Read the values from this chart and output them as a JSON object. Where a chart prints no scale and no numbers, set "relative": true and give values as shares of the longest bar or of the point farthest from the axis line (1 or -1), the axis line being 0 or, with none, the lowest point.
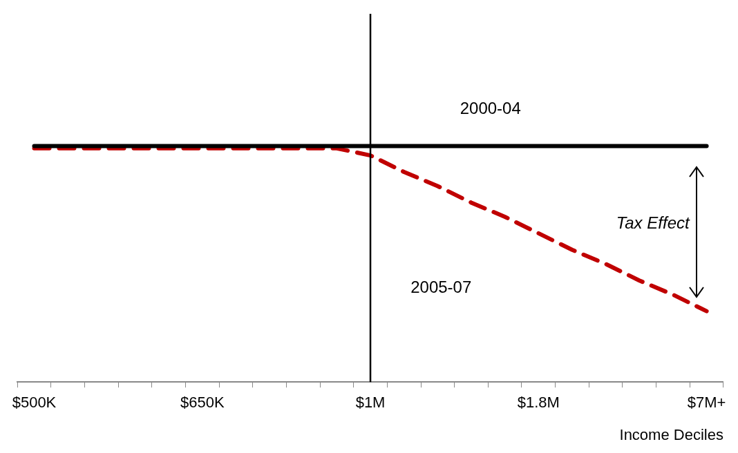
{
  "chart_data": {
    "type": "line",
    "relative": true,
    "xlabel": "Income Deciles",
    "categories": [
      "$500K",
      null,
      null,
      null,
      null,
      "$650K",
      null,
      null,
      null,
      null,
      "$1M",
      null,
      null,
      null,
      null,
      "$1.8M",
      null,
      null,
      null,
      null,
      "$7M+"
    ],
    "series": [
      {
        "color": "#000000",
        "line_style": "solid",
        "values": [
          1,
          1,
          1,
          1,
          1,
          1,
          1,
          1,
          1,
          1,
          1,
          1,
          1,
          1,
          1,
          1,
          1,
          1,
          1,
          1,
          1
        ]
      },
      {
        "color": "#c00000",
        "line_style": "dashed",
        "values": [
          0.99,
          0.99,
          0.99,
          0.99,
          0.99,
          0.99,
          0.99,
          0.99,
          0.99,
          0.99,
          0.96,
          0.89,
          0.83,
          0.76,
          0.7,
          0.63,
          0.56,
          0.5,
          0.43,
          0.37,
          0.3
        ]
      }
    ],
    "ref_lines": [
      {
        "axis": "x",
        "value": "$1M",
        "color": "#000000"
      }
    ],
    "annotations": [
      "2000-04",
      "2005-07",
      "Tax Effect"
    ],
    "grid": false,
    "legend": false,
    "marker": "none"
  }
}
